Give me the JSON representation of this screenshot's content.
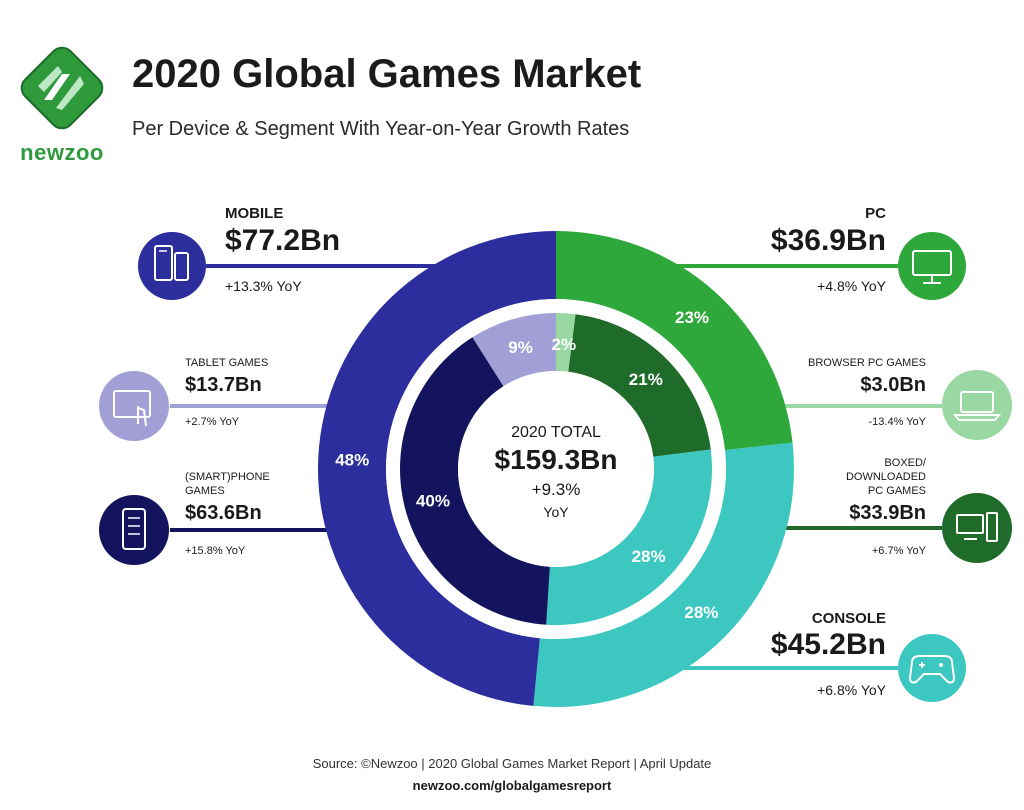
{
  "brand": {
    "name": "newzoo",
    "colors": {
      "green": "#2e9a3c",
      "dark_green": "#1f6b2a"
    }
  },
  "header": {
    "title": "2020 Global Games Market",
    "subtitle": "Per Device & Segment With Year-on-Year Growth Rates"
  },
  "center": {
    "label": "2020 TOTAL",
    "value": "$159.3Bn",
    "growth": "+9.3%",
    "unit": "YoY"
  },
  "segments": {
    "mobile": {
      "title": "MOBILE",
      "value": "$77.2Bn",
      "growth": "+13.3% YoY",
      "icon": "mobile-devices-icon",
      "color": "#2b2e9c"
    },
    "tablet": {
      "title": "TABLET GAMES",
      "value": "$13.7Bn",
      "growth": "+2.7% YoY",
      "icon": "tablet-touch-icon",
      "color": "#a29fd6"
    },
    "phone": {
      "title_line1": "(SMART)PHONE",
      "title_line2": "GAMES",
      "value": "$63.6Bn",
      "growth": "+15.8% YoY",
      "icon": "smartphone-icon",
      "color": "#14135e"
    },
    "pc": {
      "title": "PC",
      "value": "$36.9Bn",
      "growth": "+4.8% YoY",
      "icon": "monitor-icon",
      "color": "#2ea83a"
    },
    "browser": {
      "title": "BROWSER PC GAMES",
      "value": "$3.0Bn",
      "growth": "-13.4% YoY",
      "icon": "laptop-icon",
      "color": "#9ad8a3"
    },
    "boxed": {
      "title_line1": "BOXED/",
      "title_line2": "DOWNLOADED",
      "title_line3": "PC GAMES",
      "value": "$33.9Bn",
      "growth": "+6.7% YoY",
      "icon": "desktop-tower-icon",
      "color": "#1f6b2a"
    },
    "console": {
      "title": "CONSOLE",
      "value": "$45.2Bn",
      "growth": "+6.8% YoY",
      "icon": "gamepad-icon",
      "color": "#3cc7c0"
    }
  },
  "chart_data": {
    "type": "pie",
    "outer_ring": {
      "categories": [
        "PC",
        "Console",
        "Mobile"
      ],
      "values": [
        23,
        28,
        48
      ],
      "labels": [
        "23%",
        "28%",
        "48%"
      ],
      "colors": [
        "#2ea83a",
        "#3cc7c0",
        "#2b2e9c"
      ]
    },
    "inner_ring": {
      "categories": [
        "Browser PC Games",
        "Boxed/Downloaded PC Games",
        "Console",
        "(Smart)phone Games",
        "Tablet Games"
      ],
      "values": [
        2,
        21,
        28,
        40,
        9
      ],
      "labels": [
        "2%",
        "21%",
        "28%",
        "40%",
        "9%"
      ],
      "colors": [
        "#9ad8a3",
        "#1f6b2a",
        "#3cc7c0",
        "#14135e",
        "#a29fd6"
      ]
    }
  },
  "footer": {
    "source": "Source: ©Newzoo | 2020 Global Games Market Report | April Update",
    "url": "newzoo.com/globalgamesreport"
  }
}
